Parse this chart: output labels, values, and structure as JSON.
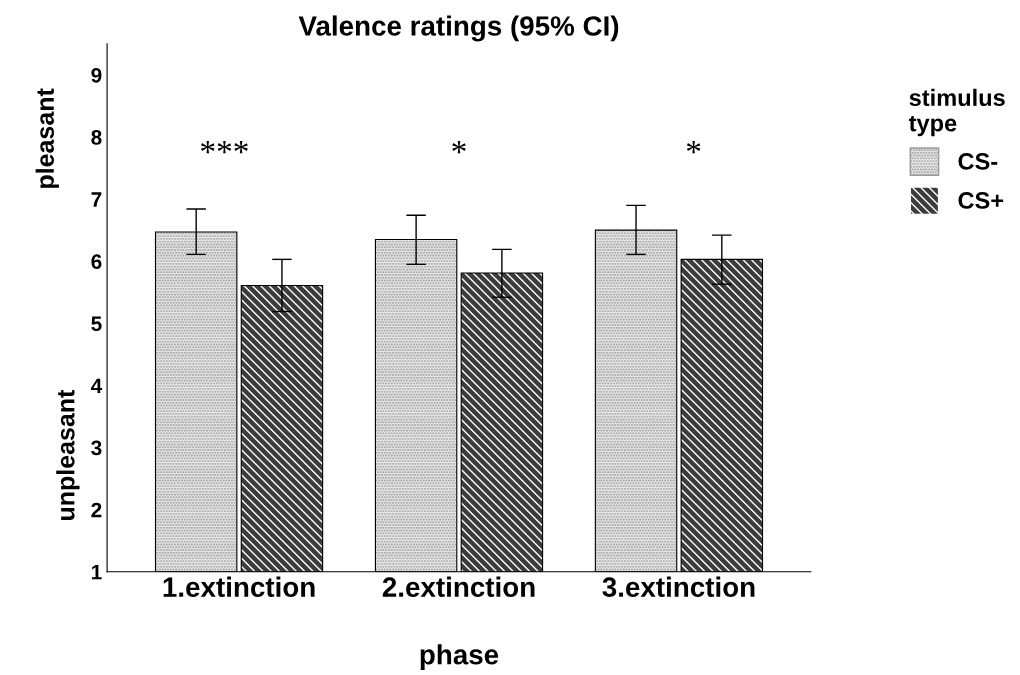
{
  "chart_data": {
    "type": "bar",
    "title": "Valence ratings (95% CI)",
    "xlabel": "phase",
    "ylabel": "unpleasant",
    "categories": [
      "1.extinction",
      "2.extinction",
      "3.extinction"
    ],
    "series": [
      {
        "name": "CS-",
        "color": "#e6e6e6",
        "values": [
          6.47,
          6.35,
          6.5
        ],
        "errors": [
          [
            6.11,
            6.84
          ],
          [
            5.95,
            6.74
          ],
          [
            6.11,
            6.9
          ]
        ]
      },
      {
        "name": "CS+",
        "color": "#3c3c3c",
        "values": [
          5.61,
          5.81,
          6.03
        ],
        "errors": [
          [
            5.19,
            6.03
          ],
          [
            5.42,
            6.19
          ],
          [
            5.63,
            6.42
          ]
        ]
      }
    ],
    "legend_title": "stimulus\ntype",
    "legend": "top right",
    "ylim": [
      1,
      9.5
    ],
    "yticks": [
      1,
      2,
      3,
      4,
      5,
      6,
      7,
      8,
      9
    ],
    "grid": false,
    "annotations": [
      "pleasant",
      "***",
      "*",
      "*"
    ]
  }
}
